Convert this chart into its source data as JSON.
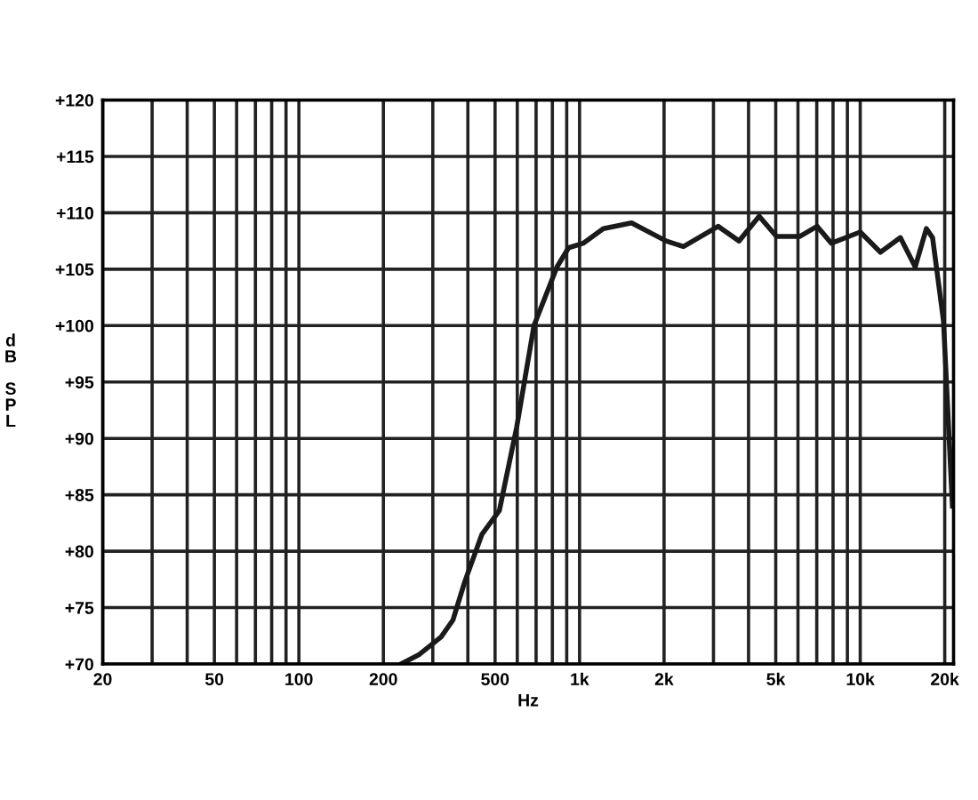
{
  "chart_data": {
    "type": "line",
    "xlabel": "Hz",
    "ylabel": "dB SPL",
    "log": "x",
    "grid": true,
    "marker": "none",
    "line_style": "solid",
    "xlim": [
      20,
      21500
    ],
    "ylim": [
      70,
      120
    ],
    "xticks": [
      20,
      {
        "value": 30,
        "label": null
      },
      {
        "value": 40,
        "label": null
      },
      50,
      {
        "value": 60,
        "label": null
      },
      {
        "value": 70,
        "label": null
      },
      {
        "value": 80,
        "label": null
      },
      {
        "value": 90,
        "label": null
      },
      100,
      200,
      {
        "value": 300,
        "label": null
      },
      {
        "value": 400,
        "label": null
      },
      500,
      {
        "value": 600,
        "label": null
      },
      {
        "value": 700,
        "label": null
      },
      {
        "value": 800,
        "label": null
      },
      {
        "value": 900,
        "label": null
      },
      {
        "value": 1000,
        "label": "1k"
      },
      {
        "value": 2000,
        "label": "2k"
      },
      {
        "value": 3000,
        "label": null
      },
      {
        "value": 4000,
        "label": null
      },
      {
        "value": 5000,
        "label": "5k"
      },
      {
        "value": 6000,
        "label": null
      },
      {
        "value": 7000,
        "label": null
      },
      {
        "value": 8000,
        "label": null
      },
      {
        "value": 9000,
        "label": null
      },
      {
        "value": 10000,
        "label": "10k"
      },
      {
        "value": 20000,
        "label": "20k"
      }
    ],
    "yticks": [
      {
        "value": 70,
        "label": "+70"
      },
      {
        "value": 75,
        "label": "+75"
      },
      {
        "value": 80,
        "label": "+80"
      },
      {
        "value": 85,
        "label": "+85"
      },
      {
        "value": 90,
        "label": "+90"
      },
      {
        "value": 95,
        "label": "+95"
      },
      {
        "value": 100,
        "label": "+100"
      },
      {
        "value": 105,
        "label": "+105"
      },
      {
        "value": 110,
        "label": "+110"
      },
      {
        "value": 115,
        "label": "+115"
      },
      {
        "value": 120,
        "label": "+120"
      }
    ],
    "series": [
      {
        "color": "#1a1a1a",
        "x": [
          231,
          267,
          321,
          354,
          390,
          449,
          518,
          597,
          688,
          831,
          914,
          1030,
          1215,
          1532,
          2035,
          2345,
          3118,
          3700,
          4365,
          5030,
          6080,
          7020,
          7890,
          10000,
          11800,
          13900,
          15700,
          17200,
          18100,
          19800,
          21300
        ],
        "values": [
          70,
          70.8,
          72.4,
          73.9,
          77.3,
          81.5,
          83.6,
          91,
          100,
          105.2,
          106.9,
          107.3,
          108.6,
          109.1,
          107.5,
          107,
          108.8,
          107.5,
          109.7,
          107.9,
          107.9,
          108.8,
          107.3,
          108.3,
          106.5,
          107.8,
          105.2,
          108.6,
          107.8,
          100.4,
          84
        ]
      }
    ]
  }
}
